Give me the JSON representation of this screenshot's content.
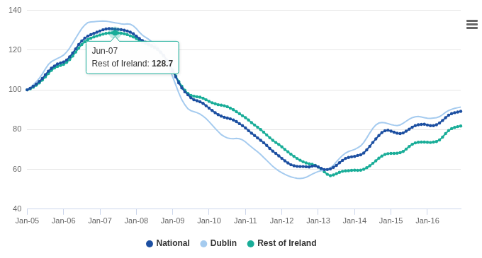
{
  "chart_data": {
    "type": "line",
    "categories": [
      "Jan-05",
      null,
      null,
      null,
      null,
      null,
      null,
      null,
      null,
      null,
      null,
      null,
      "Jan-06",
      null,
      null,
      null,
      null,
      null,
      null,
      null,
      null,
      null,
      null,
      null,
      "Jan-07",
      null,
      null,
      null,
      null,
      null,
      null,
      null,
      null,
      null,
      null,
      null,
      "Jan-08",
      null,
      null,
      null,
      null,
      null,
      null,
      null,
      null,
      null,
      null,
      null,
      "Jan-09",
      null,
      null,
      null,
      null,
      null,
      null,
      null,
      null,
      null,
      null,
      null,
      "Jan-10",
      null,
      null,
      null,
      null,
      null,
      null,
      null,
      null,
      null,
      null,
      null,
      "Jan-11",
      null,
      null,
      null,
      null,
      null,
      null,
      null,
      null,
      null,
      null,
      null,
      "Jan-12",
      null,
      null,
      null,
      null,
      null,
      null,
      null,
      null,
      null,
      null,
      null,
      "Jan-13",
      null,
      null,
      null,
      null,
      null,
      null,
      null,
      null,
      null,
      null,
      null,
      "Jan-14",
      null,
      null,
      null,
      null,
      null,
      null,
      null,
      null,
      null,
      null,
      null,
      "Jan-15",
      null,
      null,
      null,
      null,
      null,
      null,
      null,
      null,
      null,
      null,
      null,
      "Jan-16",
      null,
      null,
      null,
      null,
      null,
      null,
      null,
      null,
      null,
      null,
      null
    ],
    "series": [
      {
        "name": "National",
        "color": "#1c4fa1",
        "marker": "circle",
        "values": [
          100,
          100.8,
          101.8,
          102.9,
          104.2,
          105.7,
          107.6,
          109.4,
          110.9,
          112.0,
          113.0,
          113.5,
          114.0,
          115.0,
          116.6,
          118.5,
          120.6,
          122.8,
          124.6,
          126.0,
          127.0,
          127.8,
          128.4,
          129.0,
          129.6,
          130.2,
          130.6,
          130.8,
          130.7,
          130.5,
          130.4,
          130.3,
          130.0,
          129.6,
          129.0,
          128.2,
          127.0,
          125.8,
          124.8,
          124.0,
          123.2,
          122.4,
          121.5,
          120.5,
          119.0,
          117.4,
          115.0,
          112.5,
          109.5,
          106.5,
          103.5,
          101.0,
          99.0,
          97.5,
          96.0,
          95.0,
          94.5,
          94.0,
          93.2,
          92.0,
          90.8,
          89.6,
          88.5,
          87.5,
          86.8,
          86.2,
          85.8,
          85.4,
          84.8,
          84.0,
          83.0,
          82.0,
          80.8,
          79.5,
          78.2,
          77.0,
          75.8,
          74.6,
          73.4,
          72.0,
          70.5,
          69.2,
          68.0,
          66.8,
          65.5,
          64.3,
          63.2,
          62.3,
          61.8,
          61.5,
          61.4,
          61.4,
          61.3,
          61.2,
          61.6,
          61.8,
          61.2,
          60.5,
          59.9,
          59.9,
          60.2,
          61.0,
          62.0,
          63.3,
          64.5,
          65.5,
          66.0,
          66.3,
          66.5,
          67.0,
          67.3,
          68.2,
          69.8,
          71.6,
          73.5,
          75.3,
          77.0,
          78.5,
          79.4,
          79.7,
          79.2,
          78.7,
          78.2,
          78.0,
          78.3,
          79.2,
          80.2,
          81.2,
          82.0,
          82.4,
          82.6,
          82.7,
          82.3,
          82.0,
          82.0,
          82.4,
          83.3,
          84.6,
          86.0,
          87.2,
          88.0,
          88.5,
          88.8,
          89.2
        ]
      },
      {
        "name": "Dublin",
        "color": "#a5cbef",
        "marker": "none",
        "values": [
          100,
          101.2,
          102.5,
          104.0,
          105.8,
          108.0,
          110.5,
          112.8,
          114.2,
          115.0,
          115.8,
          116.5,
          117.5,
          119.0,
          121.0,
          123.5,
          126.0,
          128.5,
          130.8,
          132.6,
          133.8,
          134.2,
          134.3,
          134.4,
          134.5,
          134.6,
          134.5,
          134.3,
          134.0,
          133.7,
          133.5,
          133.2,
          133.0,
          133.2,
          133.0,
          132.2,
          130.8,
          129.0,
          127.5,
          126.5,
          125.5,
          124.3,
          123.0,
          121.5,
          119.5,
          117.0,
          114.0,
          110.5,
          106.5,
          102.5,
          98.5,
          95.0,
          92.5,
          90.5,
          89.5,
          89.0,
          88.5,
          87.8,
          86.8,
          85.5,
          84.0,
          82.3,
          80.6,
          79.0,
          77.5,
          76.5,
          75.8,
          75.5,
          75.4,
          75.6,
          75.4,
          74.8,
          73.8,
          72.5,
          71.2,
          70.0,
          68.8,
          67.5,
          66.0,
          64.5,
          63.0,
          61.5,
          60.3,
          59.2,
          58.3,
          57.5,
          56.8,
          56.2,
          55.8,
          55.5,
          55.4,
          55.6,
          56.0,
          56.8,
          57.6,
          58.3,
          58.9,
          59.3,
          59.6,
          60.0,
          60.8,
          62.0,
          63.8,
          65.5,
          67.0,
          68.2,
          69.0,
          69.5,
          70.0,
          70.8,
          71.8,
          73.5,
          75.8,
          78.3,
          80.6,
          82.3,
          83.3,
          83.6,
          83.4,
          83.0,
          82.5,
          82.2,
          82.0,
          82.3,
          83.2,
          84.2,
          85.2,
          86.0,
          86.4,
          86.6,
          86.3,
          86.0,
          85.7,
          85.6,
          85.8,
          86.0,
          86.5,
          87.5,
          88.7,
          89.6,
          90.2,
          90.7,
          91.0,
          91.3
        ]
      },
      {
        "name": "Rest of Ireland",
        "color": "#19ad98",
        "marker": "circle",
        "values": [
          100,
          100.5,
          101.3,
          102.3,
          103.5,
          104.9,
          106.5,
          108.2,
          109.8,
          111.0,
          111.8,
          112.3,
          112.8,
          113.8,
          115.2,
          117.0,
          119.0,
          121.0,
          122.8,
          124.2,
          125.3,
          126.0,
          126.6,
          127.1,
          127.6,
          128.0,
          128.4,
          128.6,
          128.7,
          128.7,
          128.6,
          128.5,
          128.2,
          127.8,
          127.2,
          126.6,
          125.8,
          124.8,
          124.0,
          123.3,
          122.7,
          122.0,
          121.3,
          120.3,
          118.8,
          117.0,
          114.8,
          112.5,
          110.0,
          107.0,
          104.2,
          101.8,
          99.8,
          98.2,
          97.2,
          96.8,
          96.5,
          96.3,
          95.8,
          95.0,
          94.2,
          93.5,
          93.0,
          92.5,
          92.3,
          92.0,
          91.5,
          90.8,
          90.0,
          89.0,
          88.0,
          87.0,
          86.0,
          84.8,
          83.5,
          82.3,
          81.2,
          80.0,
          78.7,
          77.3,
          75.9,
          74.6,
          73.5,
          72.5,
          71.3,
          70.0,
          68.8,
          67.6,
          66.5,
          65.5,
          64.6,
          63.8,
          63.2,
          62.8,
          62.5,
          62.0,
          61.2,
          60.0,
          58.8,
          57.5,
          56.8,
          57.2,
          57.8,
          58.5,
          59.0,
          59.2,
          59.3,
          59.5,
          59.6,
          59.5,
          59.6,
          60.0,
          60.8,
          61.8,
          63.0,
          64.3,
          65.6,
          66.7,
          67.5,
          67.9,
          68.0,
          68.0,
          68.1,
          68.4,
          69.0,
          70.2,
          71.5,
          72.6,
          73.3,
          73.6,
          73.7,
          73.7,
          73.6,
          73.5,
          73.7,
          74.0,
          74.8,
          76.2,
          78.0,
          79.5,
          80.5,
          81.1,
          81.5,
          81.8
        ]
      }
    ],
    "ylim": [
      40,
      140
    ],
    "yticks": [
      40,
      60,
      80,
      100,
      120,
      140
    ],
    "grid": true,
    "legend": "bottom",
    "annotations": [
      {
        "x": "Jun-07",
        "series": "Rest of Ireland",
        "text": "Rest of Ireland: 128.7"
      }
    ]
  }
}
